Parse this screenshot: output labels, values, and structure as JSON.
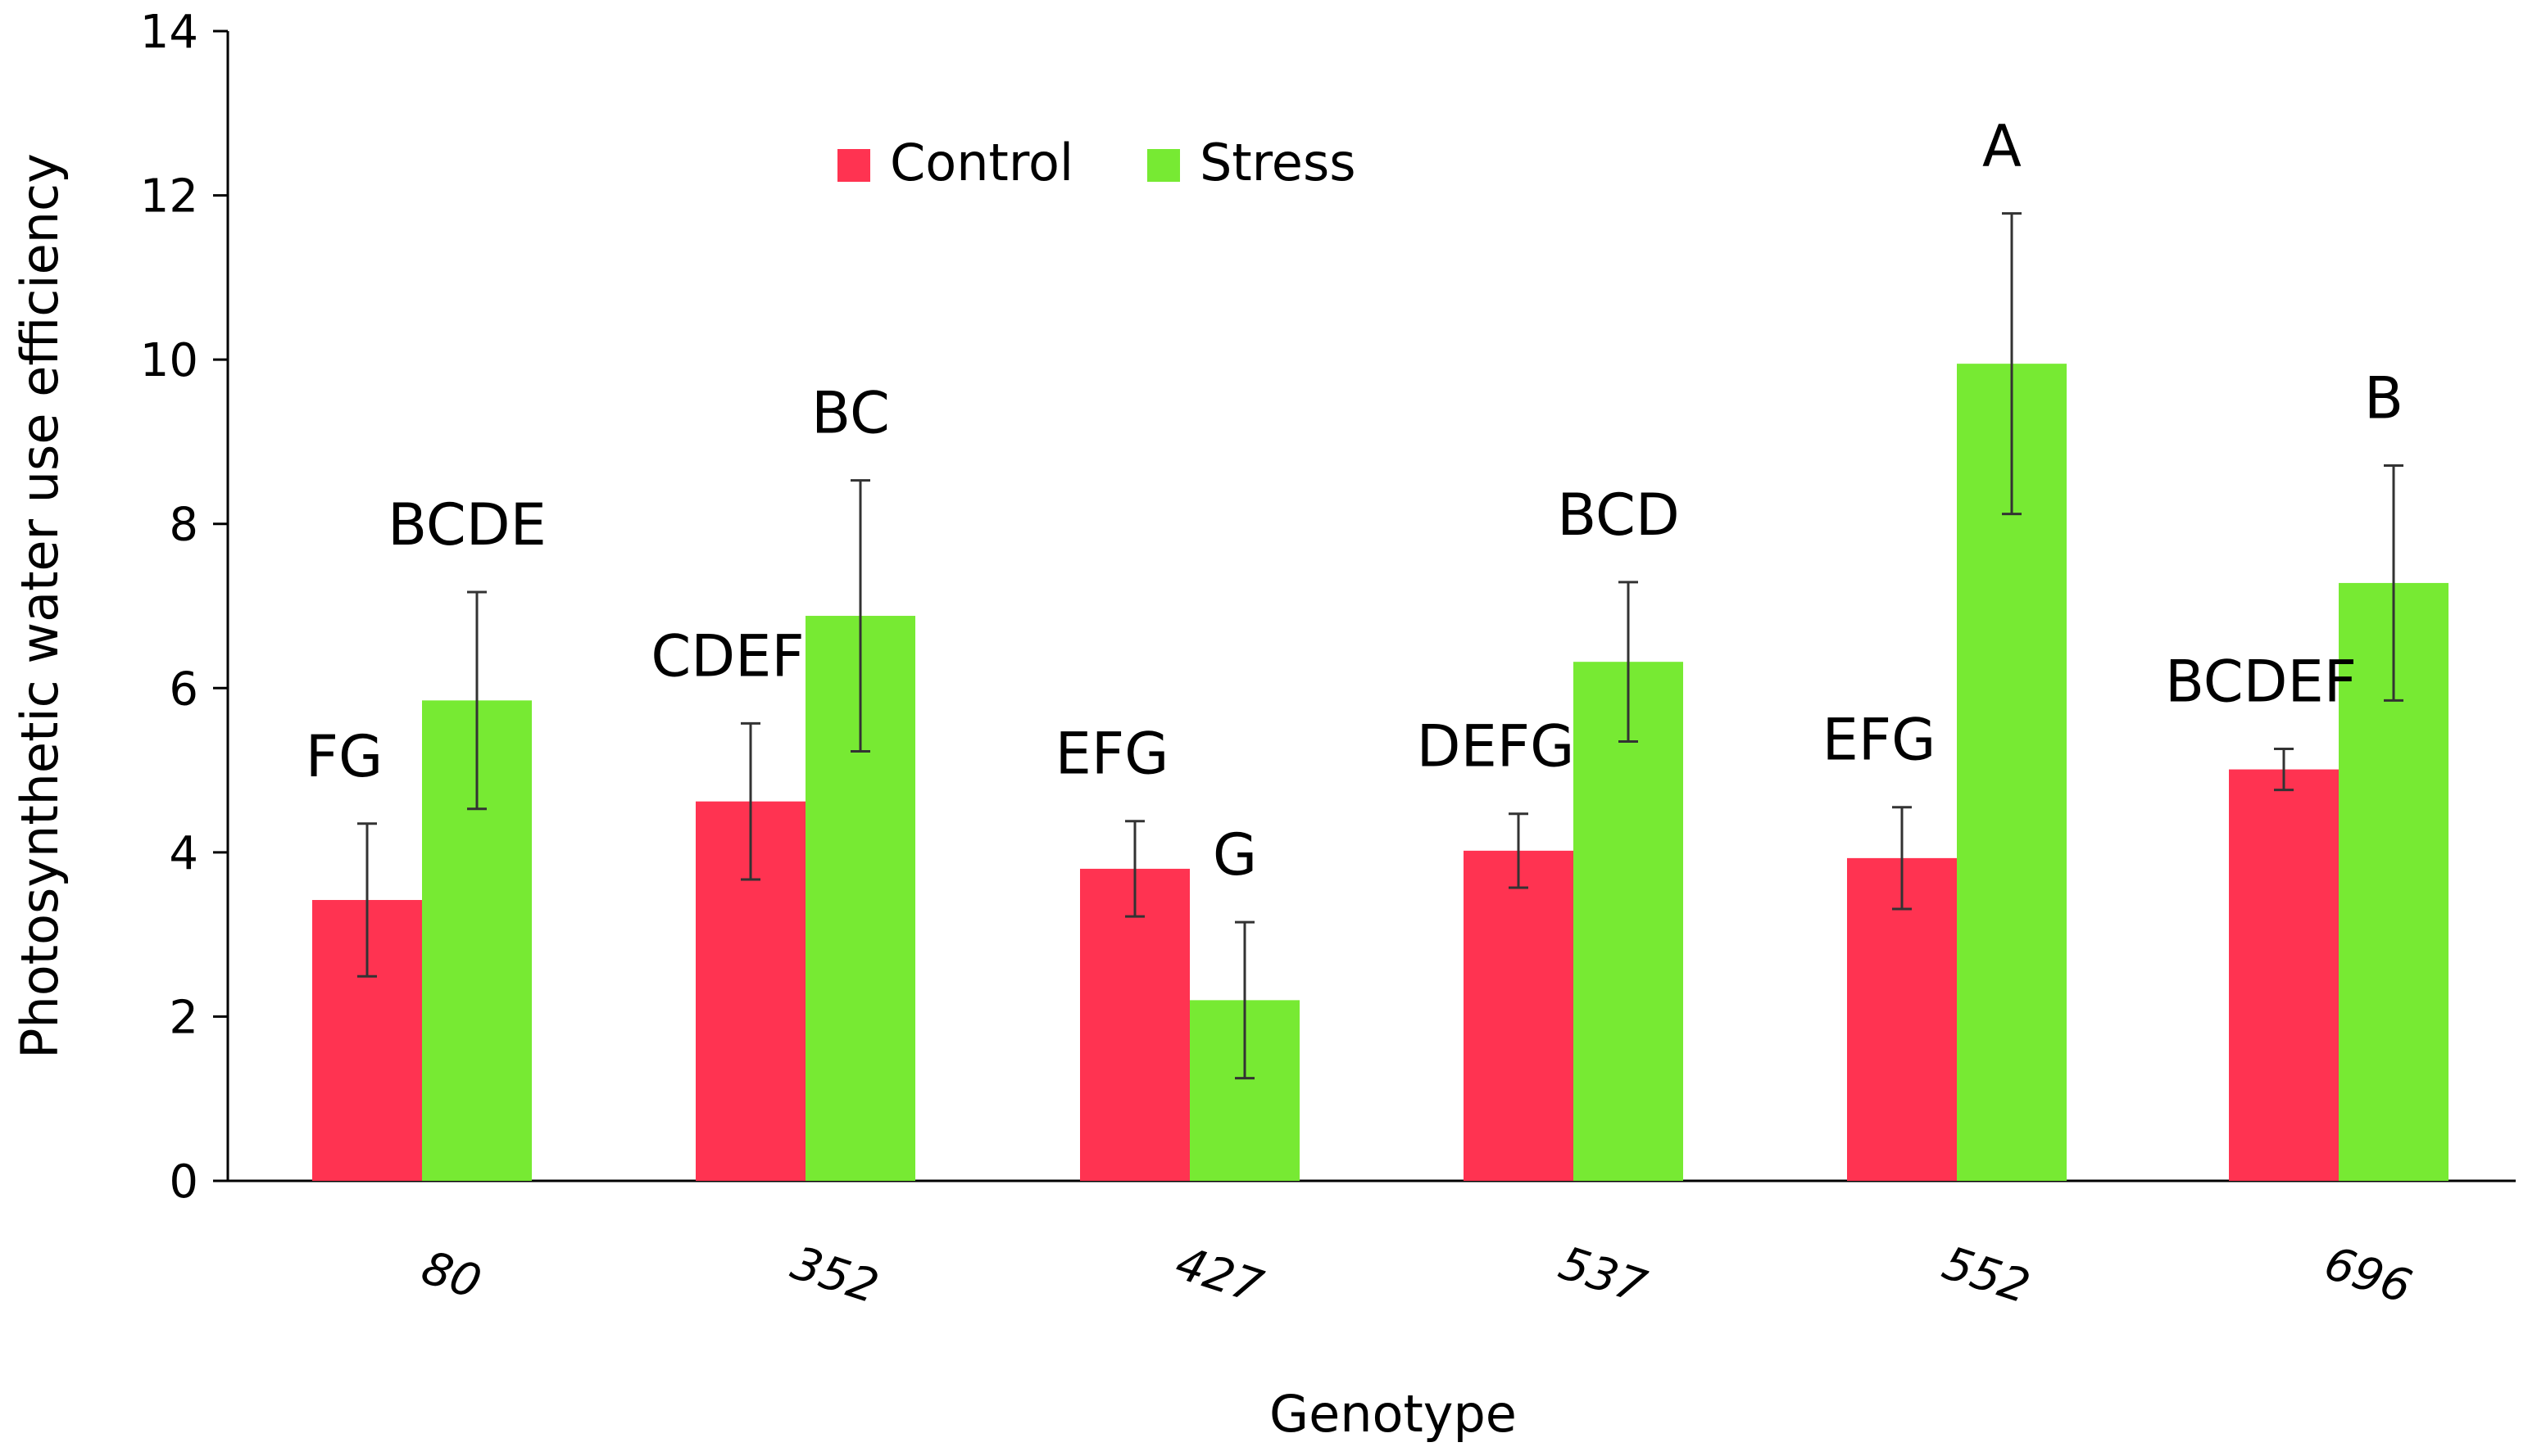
{
  "chart_data": {
    "type": "bar",
    "title": "",
    "xlabel": "Genotype",
    "ylabel": "Photosynthetic water use efficiency",
    "categories": [
      "80",
      "352",
      "427",
      "537",
      "552",
      "696"
    ],
    "ylim": [
      0,
      14
    ],
    "yticks": [
      "0",
      "2",
      "4",
      "6",
      "8",
      "10",
      "12",
      "14"
    ],
    "grid": false,
    "legend_position": "top-center",
    "series": [
      {
        "name": "Control",
        "color": "#ff3351",
        "values": [
          3.42,
          4.62,
          3.8,
          4.02,
          3.93,
          5.01
        ],
        "errors": [
          0.93,
          0.95,
          0.58,
          0.45,
          0.62,
          0.25
        ],
        "letters": [
          "FG",
          "CDEF",
          "EFG",
          "DEFG",
          "EFG",
          "BCDEF"
        ]
      },
      {
        "name": "Stress",
        "color": "#77ea33",
        "values": [
          5.85,
          6.88,
          2.2,
          6.32,
          9.95,
          7.28
        ],
        "errors": [
          1.32,
          1.65,
          0.95,
          0.97,
          1.83,
          1.43
        ],
        "letters": [
          "BCDE",
          "BC",
          "G",
          "BCD",
          "A",
          "B"
        ]
      }
    ]
  }
}
